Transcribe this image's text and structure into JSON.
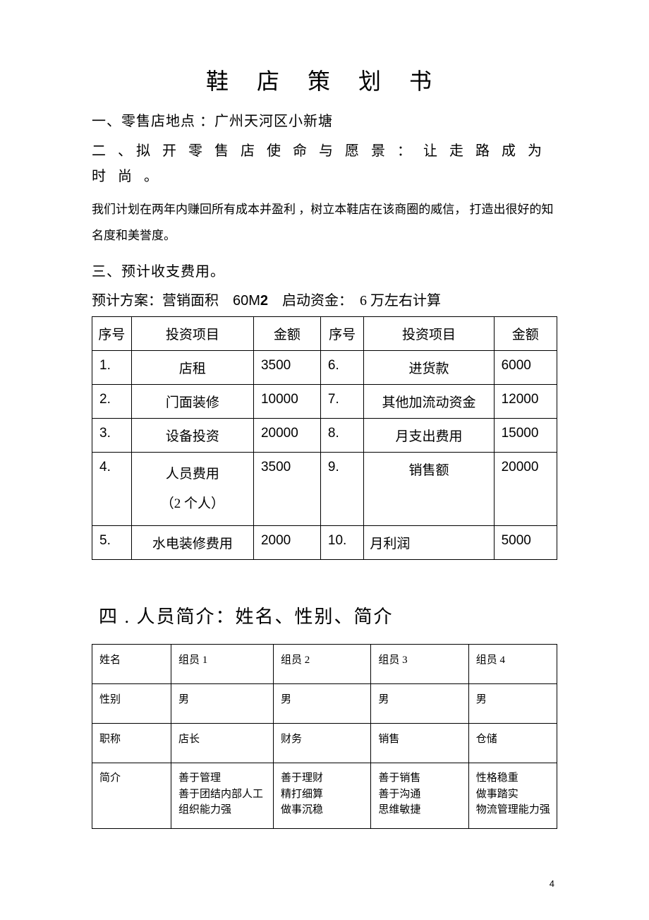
{
  "title": "鞋 店 策 划 书",
  "section1": "一、零售店地点 ：广州天河区小新塘",
  "section2": "二 、拟 开 零 售 店 使 命 与 愿 景 ： 让 走 路 成 为 时 尚 。",
  "body1": "我们计划在两年内赚回所有成本并盈利 ，树立本鞋店在该商圈的威信，  打造出很好的知名度和美誉度。",
  "section3": "三、预计收支费用。",
  "plan": {
    "prefix": "预计方案：营销面积",
    "area_num": "60M",
    "area_sub": "2",
    "capital_label": "启动资金：",
    "capital_value": "6 万左右计算"
  },
  "table1": {
    "headers": [
      "序号",
      "投资项目",
      "金额",
      "序号",
      "投资项目",
      "金额"
    ],
    "rows": [
      [
        "1.",
        "店租",
        "3500",
        "6.",
        "进货款",
        "6000"
      ],
      [
        "2.",
        "门面装修",
        "10000",
        "7.",
        "其他加流动资金",
        "12000"
      ],
      [
        "3.",
        "设备投资",
        "20000",
        "8.",
        "月支出费用",
        "15000"
      ],
      [
        "4.",
        "人员费用\n（2 个人）",
        "3500",
        "9.",
        "销售额",
        "20000"
      ],
      [
        "5.",
        "水电装修费用",
        "2000",
        "10.",
        "月利润",
        "5000"
      ]
    ]
  },
  "section4": "四 . 人员简介：姓名、性别、简介",
  "table2": {
    "rows": [
      [
        "姓名",
        "组员 1",
        "组员 2",
        "组员 3",
        "组员 4"
      ],
      [
        "性别",
        "男",
        "男",
        "男",
        "男"
      ],
      [
        "职称",
        "店长",
        "财务",
        "销售",
        "仓储"
      ],
      [
        "简介",
        "善于管理\n善于团结内部人工\n组织能力强",
        "善于理财\n精打细算\n做事沉稳",
        "善于销售\n善于沟通\n思维敏捷",
        "性格稳重\n做事踏实\n物流管理能力强"
      ]
    ]
  },
  "page_number": "4"
}
